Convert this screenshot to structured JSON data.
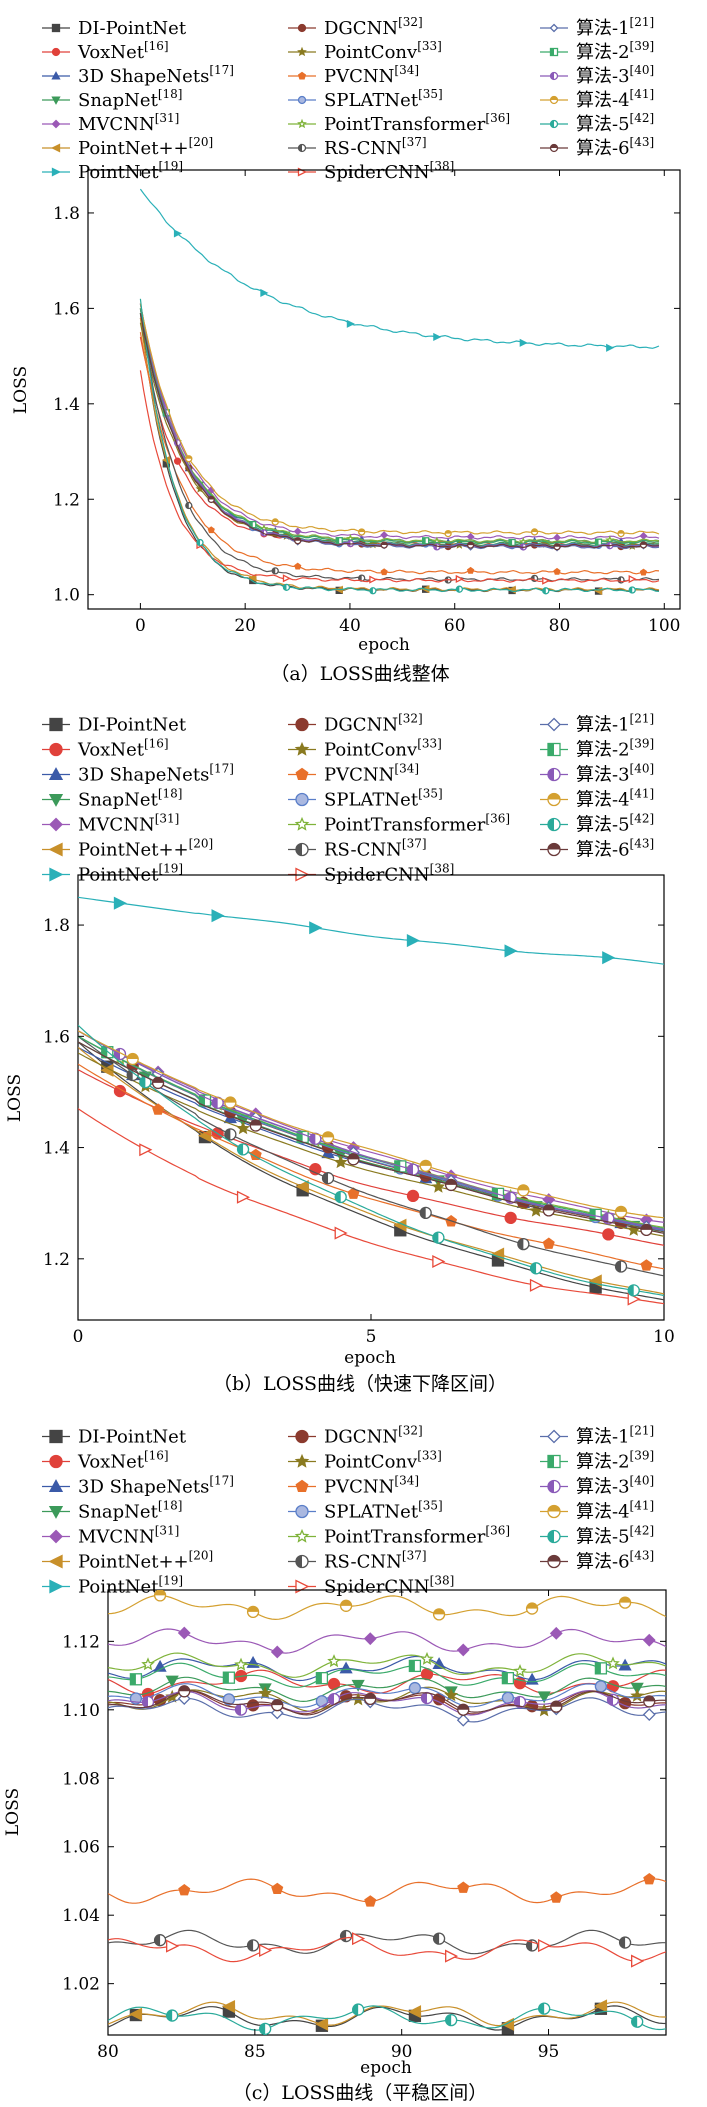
{
  "legend_names": [
    "DI-PointNet",
    "VoxNet",
    "3D ShapeNets",
    "SnapNet",
    "MVCNN",
    "PointNet++",
    "PointNet",
    "DGCNN",
    "PointConv",
    "PVCNN",
    "SPLATNet",
    "PointTransformer",
    "RS-CNN",
    "SpiderCNN",
    "算法-1",
    "算法-2",
    "算法-3",
    "算法-4",
    "算法-5",
    "算法-6"
  ],
  "legend_refs": [
    "",
    "[16]",
    "[17]",
    "[18]",
    "[31]",
    "[20]",
    "[19]",
    "[32]",
    "[33]",
    "[34]",
    "[35]",
    "[36]",
    "[37]",
    "[38]",
    "[21]",
    "[39]",
    "[40]",
    "[41]",
    "[42]",
    "[43]"
  ],
  "series_colors": [
    "#444444",
    "#e0413a",
    "#3b5aa8",
    "#3c9a5a",
    "#9b59b6",
    "#c8902a",
    "#2ab0b8",
    "#8b3a2e",
    "#8a7a20",
    "#e8702a",
    "#5a7ec8",
    "#7fb33a",
    "#555555",
    "#e84a3a",
    "#5a6eaa",
    "#3aaa6a",
    "#8a5ab8",
    "#d4a030",
    "#2aaa9a",
    "#6a3a3a"
  ],
  "charts": [
    {
      "caption": "（a）LOSS曲线整体",
      "xlabel": "epoch",
      "ylabel": "LOSS",
      "xlim": [
        -10,
        103
      ],
      "ylim": [
        0.97,
        1.89
      ],
      "xticks": [
        0,
        20,
        40,
        60,
        80,
        100
      ],
      "yticks": [
        1.0,
        1.2,
        1.4,
        1.6,
        1.8
      ],
      "ytick_labels": [
        "1.0",
        "1.2",
        "1.4",
        "1.6",
        "1.8"
      ]
    },
    {
      "caption": "（b）LOSS曲线（快速下降区间）",
      "xlabel": "epoch",
      "ylabel": "LOSS",
      "xlim": [
        0,
        10
      ],
      "ylim": [
        1.09,
        1.89
      ],
      "xticks": [
        0,
        5,
        10
      ],
      "yticks": [
        1.2,
        1.4,
        1.6,
        1.8
      ],
      "ytick_labels": [
        "1.2",
        "1.4",
        "1.6",
        "1.8"
      ]
    },
    {
      "caption": "（c）LOSS曲线（平稳区间）",
      "xlabel": "epoch",
      "ylabel": "LOSS",
      "xlim": [
        80,
        99
      ],
      "ylim": [
        1.005,
        1.135
      ],
      "xticks": [
        80,
        85,
        90,
        95
      ],
      "yticks": [
        1.02,
        1.04,
        1.06,
        1.08,
        1.1,
        1.12
      ],
      "ytick_labels": [
        "1.02",
        "1.04",
        "1.06",
        "1.08",
        "1.10",
        "1.12"
      ]
    }
  ],
  "chart_data": {
    "type": "line",
    "title": "LOSS曲线",
    "xlabel": "epoch",
    "ylabel": "LOSS",
    "xlim": [
      0,
      99
    ],
    "series": [
      {
        "name": "DI-PointNet",
        "start": 1.59,
        "end": 1.01,
        "rate": 0.16
      },
      {
        "name": "VoxNet",
        "start": 1.54,
        "end": 1.108,
        "rate": 0.13
      },
      {
        "name": "3D ShapeNets",
        "start": 1.58,
        "end": 1.112,
        "rate": 0.12
      },
      {
        "name": "SnapNet",
        "start": 1.59,
        "end": 1.106,
        "rate": 0.12
      },
      {
        "name": "MVCNN",
        "start": 1.61,
        "end": 1.12,
        "rate": 0.12
      },
      {
        "name": "PointNet++",
        "start": 1.58,
        "end": 1.011,
        "rate": 0.15
      },
      {
        "name": "PointNet",
        "start": 1.85,
        "end": 1.515,
        "rate": 0.045
      },
      {
        "name": "DGCNN",
        "start": 1.6,
        "end": 1.102,
        "rate": 0.12
      },
      {
        "name": "PointConv",
        "start": 1.57,
        "end": 1.103,
        "rate": 0.12
      },
      {
        "name": "PVCNN",
        "start": 1.55,
        "end": 1.047,
        "rate": 0.13
      },
      {
        "name": "SPLATNet",
        "start": 1.6,
        "end": 1.104,
        "rate": 0.12
      },
      {
        "name": "PointTransformer",
        "start": 1.6,
        "end": 1.113,
        "rate": 0.12
      },
      {
        "name": "RS-CNN",
        "start": 1.6,
        "end": 1.032,
        "rate": 0.14
      },
      {
        "name": "SpiderCNN",
        "start": 1.47,
        "end": 1.03,
        "rate": 0.16
      },
      {
        "name": "算法-1",
        "start": 1.61,
        "end": 1.1,
        "rate": 0.12
      },
      {
        "name": "算法-2",
        "start": 1.6,
        "end": 1.11,
        "rate": 0.12
      },
      {
        "name": "算法-3",
        "start": 1.61,
        "end": 1.102,
        "rate": 0.12
      },
      {
        "name": "算法-4",
        "start": 1.61,
        "end": 1.13,
        "rate": 0.12
      },
      {
        "name": "算法-5",
        "start": 1.62,
        "end": 1.01,
        "rate": 0.16
      },
      {
        "name": "算法-6",
        "start": 1.59,
        "end": 1.102,
        "rate": 0.12
      }
    ]
  }
}
